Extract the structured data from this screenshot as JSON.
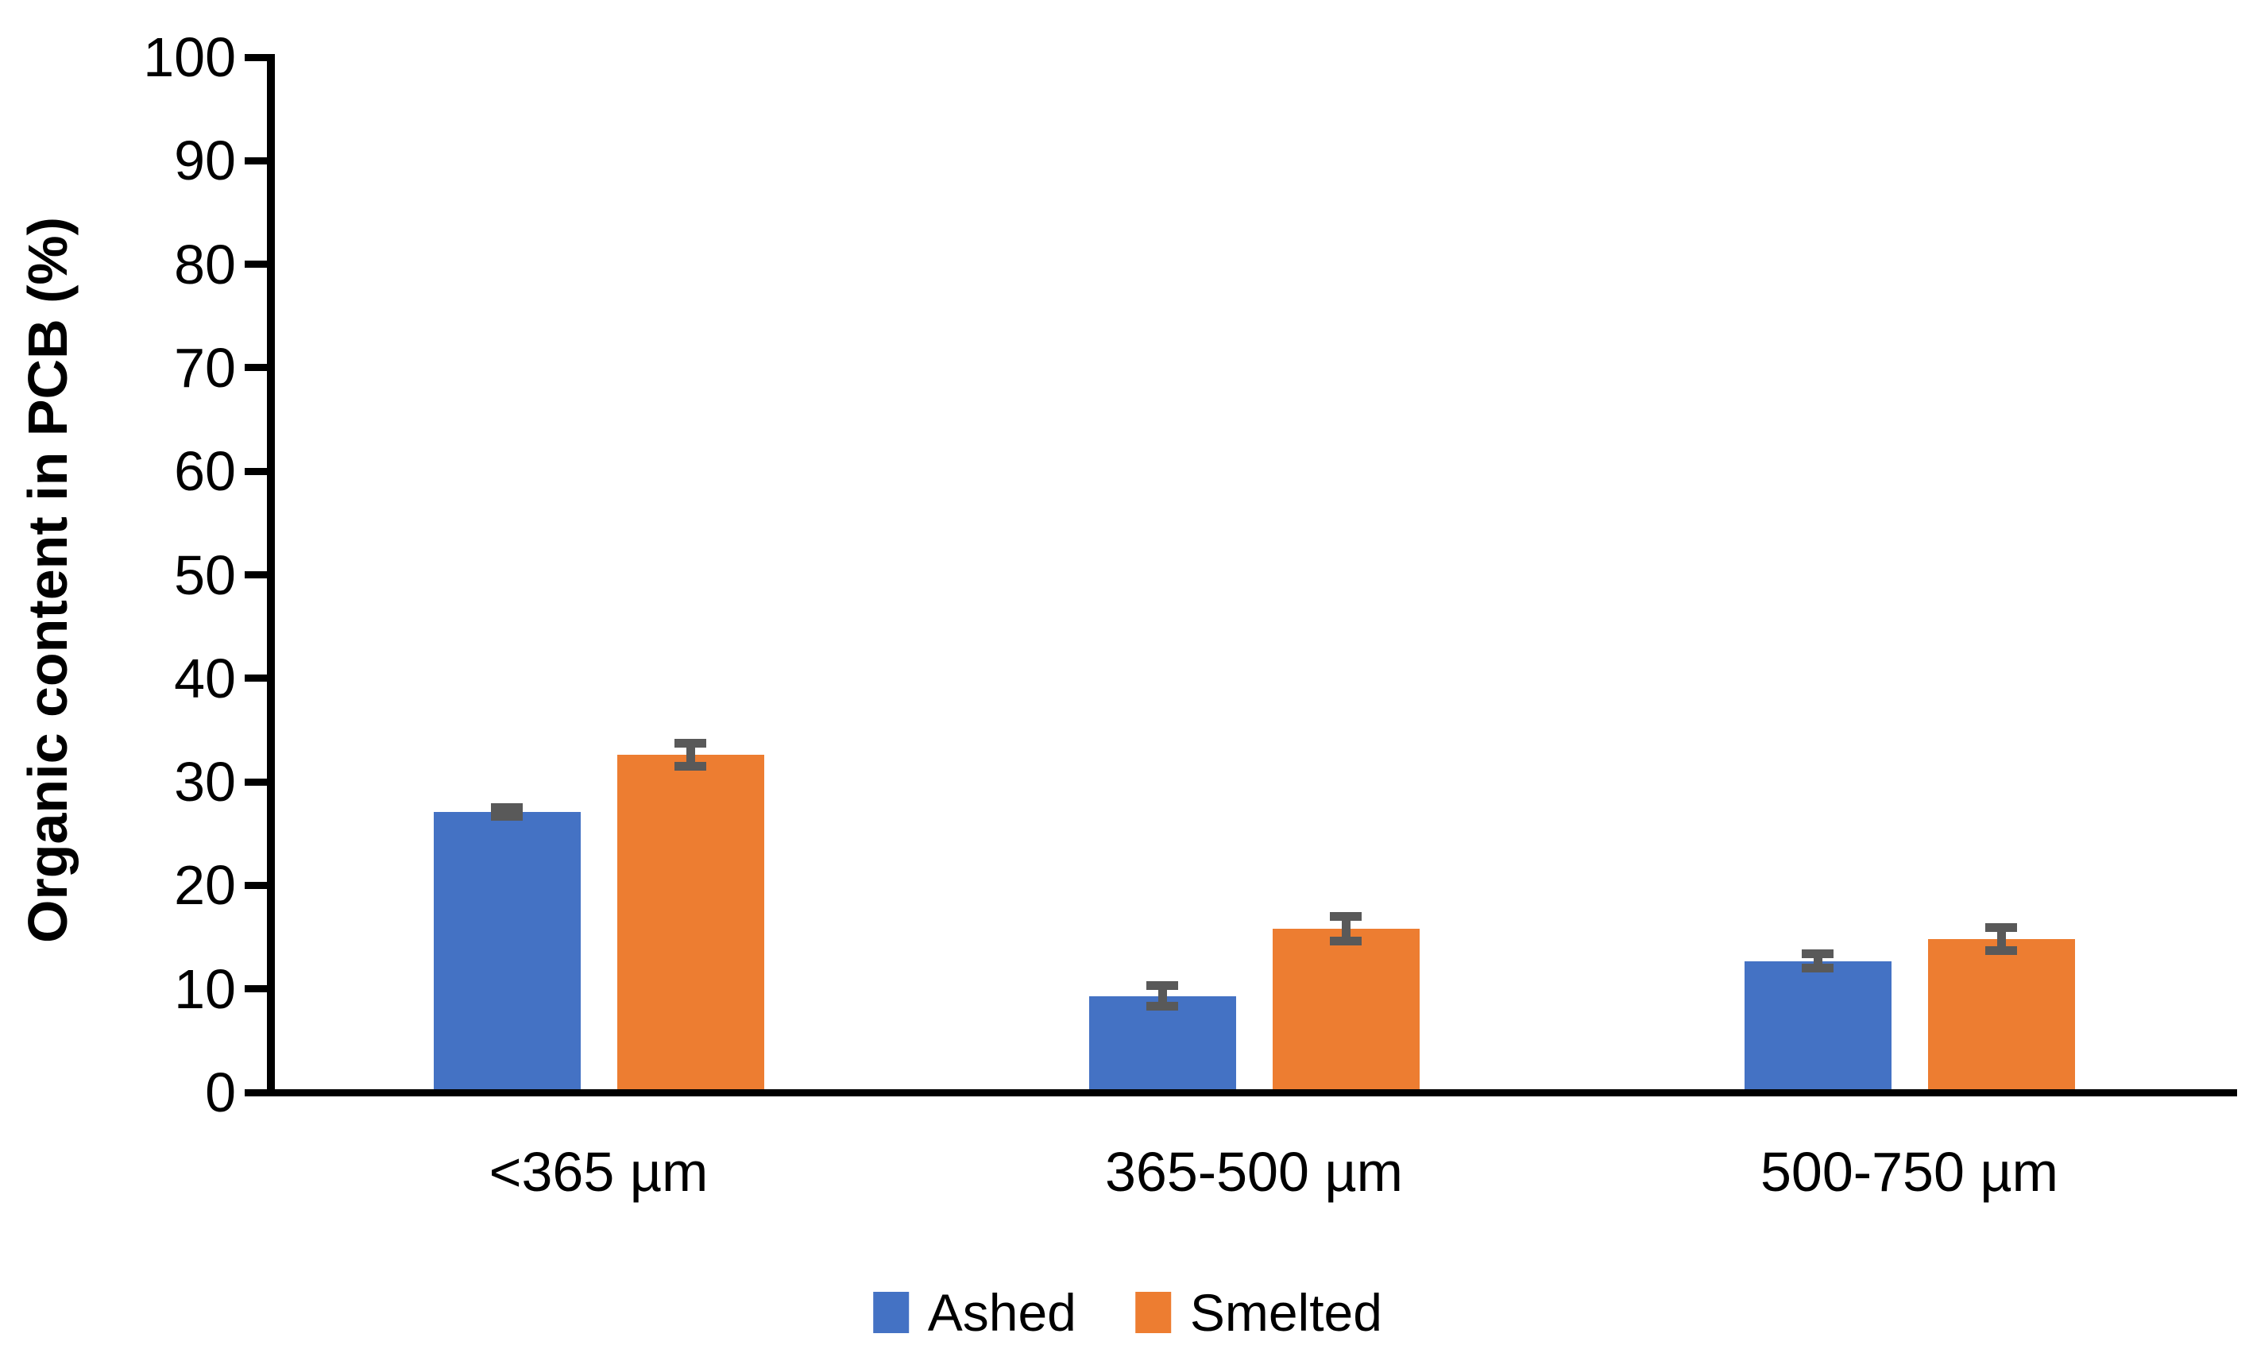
{
  "figure": {
    "background": "#ffffff",
    "text_color": "#000000"
  },
  "chart_data": {
    "type": "bar",
    "title": "",
    "xlabel": "",
    "ylabel": "Organic content in PCB (%)",
    "categories": [
      "<365 µm",
      "365-500 µm",
      "500-750 µm"
    ],
    "series": [
      {
        "name": "Ashed",
        "color": "#4472C4",
        "values": [
          27.1,
          9.3,
          12.7
        ],
        "errors": [
          0.4,
          1.0,
          0.7
        ]
      },
      {
        "name": "Smelted",
        "color": "#ED7D31",
        "values": [
          32.6,
          15.8,
          14.8
        ],
        "errors": [
          1.1,
          1.2,
          1.1
        ]
      }
    ],
    "ylim": [
      0,
      100
    ],
    "yticks": [
      0,
      10,
      20,
      30,
      40,
      50,
      60,
      70,
      80,
      90,
      100
    ],
    "ytick_labels": [
      "0",
      "10",
      "20",
      "30",
      "40",
      "50",
      "60",
      "70",
      "80",
      "90",
      "100"
    ],
    "grid": false,
    "legend_position": "bottom",
    "error_bar_color": "#595959",
    "axis_color": "#000000"
  }
}
